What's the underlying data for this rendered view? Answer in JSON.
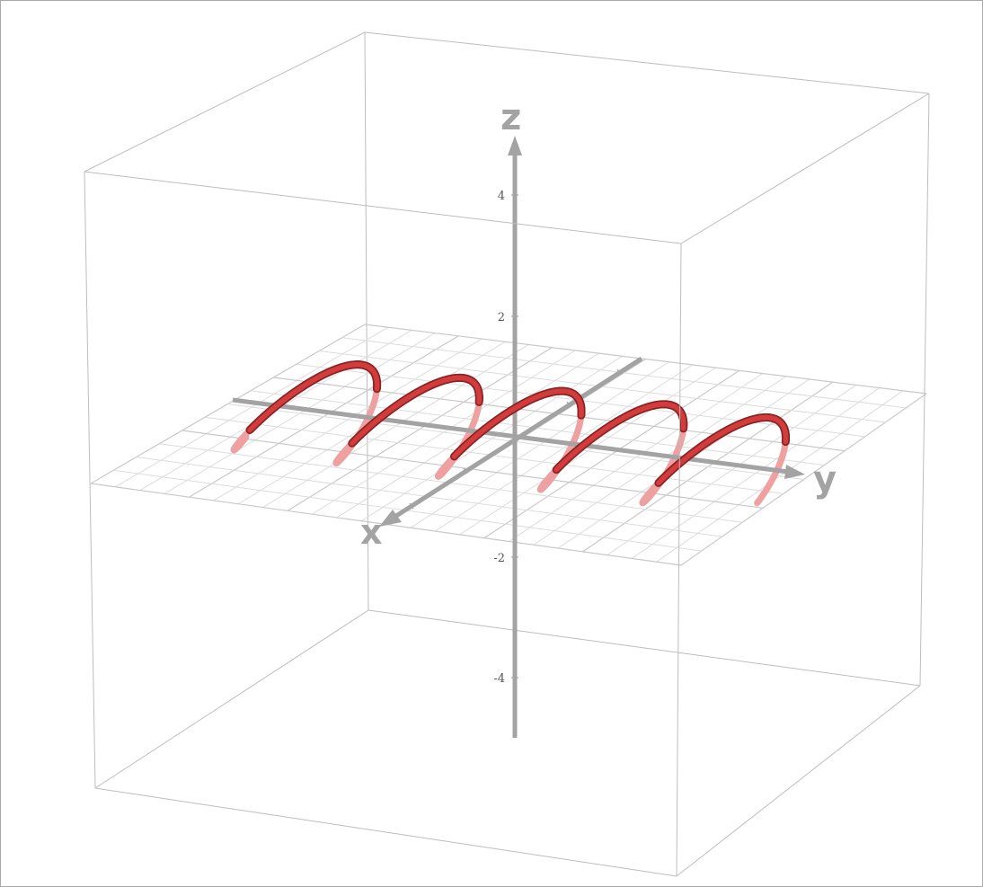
{
  "diagram": {
    "axes": {
      "x": {
        "label": "x"
      },
      "y": {
        "label": "y"
      },
      "z": {
        "label": "z"
      }
    },
    "z_ticks": [
      {
        "value": 4,
        "label": "4"
      },
      {
        "value": 2,
        "label": "2"
      },
      {
        "value": -2,
        "label": "-2"
      },
      {
        "value": -4,
        "label": "-4"
      }
    ],
    "curve": {
      "kind": "helix",
      "turns": 5,
      "color_front": "#d23c3c",
      "color_back": "#eea0a0",
      "color_shadow": "#8a2424"
    },
    "colors": {
      "axis": "#a3a3a3",
      "box": "#bdbdbd",
      "grid": "#dcdcdc"
    }
  }
}
